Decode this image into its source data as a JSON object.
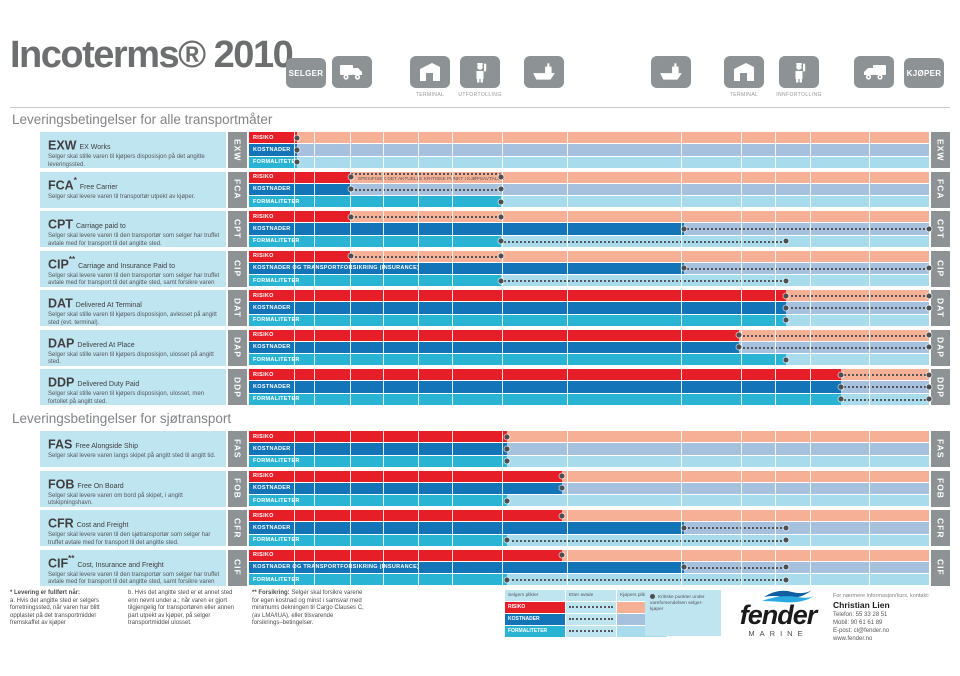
{
  "title": "Incoterms® 2010",
  "header": {
    "seller_label": "SELGER",
    "buyer_label": "KJØPER",
    "terminal_label": "TERMINAL",
    "export_customs_label": "UTFORTOLLING",
    "import_customs_label": "INNFORTOLLING"
  },
  "gridlines": [
    6.6,
    9.5,
    14.9,
    19.7,
    24.8,
    29.9,
    37.2,
    46.7,
    63.5,
    72.3,
    77.4,
    82.5,
    91.2
  ],
  "sections": [
    {
      "heading": "Leveringsbetingelser for alle transportmåter",
      "rows": [
        {
          "code": "EXW",
          "stars": "",
          "name": "EX Works",
          "desc": "Selger skal stille varen til kjøpers disposisjon på det angitte leveringssted.",
          "tracks": [
            {
              "label": "RISIKO",
              "solid": 7,
              "dots": [
                7
              ]
            },
            {
              "label": "KOSTNADER",
              "solid": 7,
              "dots": [
                7
              ]
            },
            {
              "label": "FORMALITETER",
              "solid": 7,
              "dots": [
                7
              ]
            }
          ]
        },
        {
          "code": "FCA",
          "stars": "*",
          "name": "Free Carrier",
          "desc": "Selger skal levere varen til transportør utpekt av kjøper.",
          "tracks": [
            {
              "label": "RISIKO",
              "solid": 15,
              "dotted": [
                15,
                37
              ],
              "dots": [
                15,
                37
              ],
              "caption": "SPESIFISER DET AKTUELLE KRITISKE PUNKT I KJØPSAVTALEN"
            },
            {
              "label": "KOSTNADER",
              "solid": 15,
              "dotted": [
                15,
                37
              ],
              "dots": [
                15,
                37
              ]
            },
            {
              "label": "FORMALITETER",
              "solid": 37,
              "dots": [
                37
              ]
            }
          ]
        },
        {
          "code": "CPT",
          "stars": "",
          "name": "Carriage paid to",
          "desc": "Selger skal levere varen til den transportør som selger har truffet avtale med for transport til det angitte sted.",
          "tracks": [
            {
              "label": "RISIKO",
              "solid": 15,
              "dotted": [
                15,
                37
              ],
              "dots": [
                15,
                37
              ]
            },
            {
              "label": "KOSTNADER",
              "solid": 64,
              "dotted": [
                64,
                100
              ],
              "dots": [
                64,
                100
              ]
            },
            {
              "label": "FORMALITETER",
              "solid": 37,
              "dotted": [
                37,
                79
              ],
              "dots": [
                37,
                79
              ]
            }
          ]
        },
        {
          "code": "CIP",
          "stars": "**",
          "name": "Carriage and Insurance Paid to",
          "desc": "Selger skal levere varen til den transportør som selger har truffet avtale med for transport til det angitte sted, samt forsikre varen frem til dette sted.",
          "tracks": [
            {
              "label": "RISIKO",
              "solid": 15,
              "dotted": [
                15,
                37
              ],
              "dots": [
                15,
                37
              ]
            },
            {
              "label": "KOSTNADER OG TRANSPORTFORSIKRING (INSURANCE)",
              "solid": 64,
              "dotted": [
                64,
                100
              ],
              "dots": [
                64,
                100
              ]
            },
            {
              "label": "FORMALITETER",
              "solid": 37,
              "dotted": [
                37,
                79
              ],
              "dots": [
                37,
                79
              ]
            }
          ]
        },
        {
          "code": "DAT",
          "stars": "",
          "name": "Delivered At Terminal",
          "desc": "Selger skal stille varen til kjøpers disposisjon, avlesset på angitt sted (evt. terminal).",
          "tracks": [
            {
              "label": "RISIKO",
              "solid": 79,
              "dotted": [
                79,
                100
              ],
              "dots": [
                79,
                100
              ]
            },
            {
              "label": "KOSTNADER",
              "solid": 79,
              "dotted": [
                79,
                100
              ],
              "dots": [
                79,
                100
              ]
            },
            {
              "label": "FORMALITETER",
              "solid": 79,
              "dots": [
                79
              ]
            }
          ]
        },
        {
          "code": "DAP",
          "stars": "",
          "name": "Delivered At Place",
          "desc": "Selger skal stille varen til kjøpers disposisjon, ulosset på angitt sted.",
          "tracks": [
            {
              "label": "RISIKO",
              "solid": 72,
              "dotted": [
                72,
                100
              ],
              "dots": [
                72,
                100
              ]
            },
            {
              "label": "KOSTNADER",
              "solid": 72,
              "dotted": [
                72,
                100
              ],
              "dots": [
                72,
                100
              ]
            },
            {
              "label": "FORMALITETER",
              "solid": 79,
              "dots": [
                79
              ]
            }
          ]
        },
        {
          "code": "DDP",
          "stars": "",
          "name": "Delivered Duty Paid",
          "desc": "Selger skal stille varen til kjøpers disposisjon, ulosset, men fortollet på angitt sted.",
          "tracks": [
            {
              "label": "RISIKO",
              "solid": 87,
              "dotted": [
                87,
                100
              ],
              "dots": [
                87,
                100
              ]
            },
            {
              "label": "KOSTNADER",
              "solid": 87,
              "dotted": [
                87,
                100
              ],
              "dots": [
                87,
                100
              ]
            },
            {
              "label": "FORMALITETER",
              "solid": 87,
              "dotted": [
                87,
                100
              ],
              "dots": [
                87,
                100
              ]
            }
          ]
        }
      ]
    },
    {
      "heading": "Leveringsbetingelser for sjøtransport",
      "rows": [
        {
          "code": "FAS",
          "stars": "",
          "name": "Free Alongside Ship",
          "desc": "Selger skal levere varen langs skipet på angitt sted til angitt tid.",
          "tracks": [
            {
              "label": "RISIKO",
              "solid": 38,
              "dots": [
                38
              ]
            },
            {
              "label": "KOSTNADER",
              "solid": 38,
              "dots": [
                38
              ]
            },
            {
              "label": "FORMALITETER",
              "solid": 38,
              "dots": [
                38
              ]
            }
          ]
        },
        {
          "code": "FOB",
          "stars": "",
          "name": "Free On Board",
          "desc": "Selger skal levere varen om bord på skipet, i angitt utskipningshavn.",
          "tracks": [
            {
              "label": "RISIKO",
              "solid": 46,
              "dots": [
                46
              ]
            },
            {
              "label": "KOSTNADER",
              "solid": 46,
              "dots": [
                46
              ]
            },
            {
              "label": "FORMALITETER",
              "solid": 38,
              "dots": [
                38
              ]
            }
          ]
        },
        {
          "code": "CFR",
          "stars": "",
          "name": "Cost and Freight",
          "desc": "Selger skal levere varen til den sjøtransportør som selger har truffet avtale med for transport til det angitte sted.",
          "tracks": [
            {
              "label": "RISIKO",
              "solid": 46,
              "dots": [
                46
              ]
            },
            {
              "label": "KOSTNADER",
              "solid": 64,
              "dotted": [
                64,
                79
              ],
              "dots": [
                64,
                79
              ]
            },
            {
              "label": "FORMALITETER",
              "solid": 38,
              "dotted": [
                38,
                79
              ],
              "dots": [
                38,
                79
              ]
            }
          ]
        },
        {
          "code": "CIF",
          "stars": "**",
          "name": "Cost, Insurance and Freight",
          "desc": "Selger skal levere varen til den transportør som selger har truffet avtale med for transport til det angitte sted, samt forsikre varen frem til dette sted.",
          "tracks": [
            {
              "label": "RISIKO",
              "solid": 46,
              "dots": [
                46
              ]
            },
            {
              "label": "KOSTNADER OG TRANSPORTFORSIKRING (INSURANCE)",
              "solid": 64,
              "dotted": [
                64,
                79
              ],
              "dots": [
                64,
                79
              ]
            },
            {
              "label": "FORMALITETER",
              "solid": 38,
              "dotted": [
                38,
                79
              ],
              "dots": [
                38,
                79
              ]
            }
          ]
        }
      ]
    }
  ],
  "legend": {
    "columns": [
      "Selgers plikter",
      "Etter avtale",
      "Kjøpers plikter"
    ],
    "rows": [
      {
        "label": "RISIKO",
        "seller": "#e61e28",
        "buyer": "#f6b095"
      },
      {
        "label": "KOSTNADER",
        "seller": "#1474b8",
        "buyer": "#a6c1de"
      },
      {
        "label": "FORMALITETER",
        "seller": "#2ab4d4",
        "buyer": "#a8dcec"
      }
    ],
    "dot_note": "Kritiske punkter under vareforsendelsen selger-kjøper"
  },
  "footer": {
    "notes": [
      {
        "title": "* Levering er fullført når:",
        "body": "a. Hvis det angitte sted er selgers forretningssted, når varen har blitt opplastet på det transportmiddel fremskaffet av kjøper"
      },
      {
        "title": "",
        "body": "b. Hvis det angitte sted er et annet sted enn nevnt under a.; når varen er gjort tilgjengelig for transportøren eller annen part utpekt av kjøper, på selger transportmiddel ulosset."
      },
      {
        "title": "** Forsikring:",
        "body": "Selger skal forsikre varene for egen kostnad og minst i samsvar med minimums dekningen til Cargo Clauses C, (av LMA/IUA), eller tilsvarende forsikrings–betingelser."
      }
    ],
    "logo": {
      "word": "fender",
      "sub": "MARINE"
    },
    "contact": {
      "intro": "For nærmere informasjon/kurs, kontakt:",
      "name": "Christian Lien",
      "phone": "Telefon: 55 33 28 51",
      "mobile": "Mobil: 90 61 61 89",
      "email": "E-post: cl@fender.no",
      "web": "www.fender.no"
    }
  }
}
